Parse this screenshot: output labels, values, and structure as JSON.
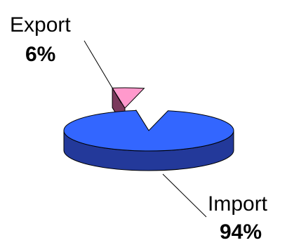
{
  "chart_data": {
    "type": "pie",
    "style": "3d-exploded",
    "slices": [
      {
        "label": "Import",
        "percent_label": "94%",
        "value": 94,
        "color": "#3366FF",
        "side_color": "#23399A"
      },
      {
        "label": "Export",
        "percent_label": "6%",
        "value": 6,
        "color": "#FF99CC",
        "side_color": "#7A3A5C"
      }
    ]
  }
}
